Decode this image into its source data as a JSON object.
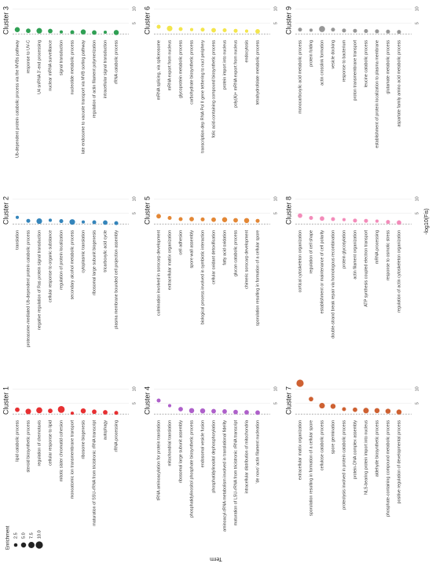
{
  "figure": {
    "x_label": "-log10(Fis)",
    "y_label": "Term",
    "legend": {
      "title": "Enrichment",
      "sizes": [
        2.5,
        {
          "value": 5,
          "label": "5.0"
        },
        {
          "value": 7.5,
          "label": "7.5"
        },
        {
          "value": 10,
          "label": "10.0"
        }
      ]
    }
  },
  "chart_data": [
    {
      "type": "dot",
      "title": "Cluster 1",
      "color": "#e41a1c",
      "xlim": [
        0,
        12
      ],
      "xticks": [
        5,
        10
      ],
      "threshold": 1.3,
      "categories": [
        "lipid catabolic process",
        "steroid biosynthetic process",
        "regulation of chemotaxis",
        "cellular response to lipid",
        "mitotic sister chromatid cohesion",
        "monoatomic ion transmembrane transport",
        "ribosome biogenesis",
        "maturation of SSU-rRNA from tricistronic rRNA transcript",
        "autophagy",
        "rRNA processing"
      ],
      "values": [
        2.8,
        2.2,
        2.6,
        2.4,
        2.9,
        1.6,
        2.4,
        2.1,
        1.9,
        1.7
      ],
      "sizes": [
        4,
        6,
        7,
        4,
        9,
        2,
        5,
        4,
        4,
        3
      ]
    },
    {
      "type": "dot",
      "title": "Cluster 2",
      "color": "#1f78b4",
      "xlim": [
        0,
        12
      ],
      "xticks": [
        5,
        10
      ],
      "threshold": 1.3,
      "categories": [
        "translation",
        "proteasome-mediated Ub-dependent protein catabolic process",
        "negative regulation of Ras protein signal transduction",
        "cellular response to organic substance",
        "regulation of protein localization",
        "secondary alcohol metabolic process",
        "cytoplasmic translation",
        "ribosomal large subunit biogenesis",
        "tricarboxylic acid cycle",
        "plasma membrane bounded cell projection assembly"
      ],
      "values": [
        3.6,
        2.4,
        2.3,
        2.6,
        2.3,
        2.0,
        2.0,
        1.9,
        1.8,
        1.6
      ],
      "sizes": [
        2,
        3,
        6,
        2,
        3,
        6,
        2,
        3,
        4,
        3
      ]
    },
    {
      "type": "dot",
      "title": "Cluster 3",
      "color": "#1a9641",
      "xlim": [
        0,
        12
      ],
      "xticks": [
        5,
        10
      ],
      "threshold": 1.3,
      "categories": [
        "Ub-dependent protein catabolic process via the MVBs pathway",
        "response to UV-C",
        "U4 snRNA 3'-end processing",
        "nuclear mRNA surveillance",
        "signal transduction",
        "nucleotide metabolic process",
        "late endosome to vacuole transport via MVB sorting pathway",
        "regulation of actin filament polymerization",
        "intracellular signal transduction",
        "rRNA catabolic process"
      ],
      "values": [
        2.8,
        2.4,
        2.4,
        2.3,
        2.0,
        1.9,
        2.0,
        1.8,
        1.9,
        1.8
      ],
      "sizes": [
        5,
        4,
        6,
        4,
        2,
        3,
        5,
        4,
        2,
        5
      ]
    },
    {
      "type": "dot",
      "title": "Cluster 4",
      "color": "#a54fc4",
      "xlim": [
        0,
        12
      ],
      "xticks": [
        5,
        10
      ],
      "threshold": 1.3,
      "categories": [
        "tRNA aminoacylation for protein translation",
        "mitochondrial translation",
        "ribosomal large subunit assembly",
        "phosphatidylinositol phosphate biosynthetic process",
        "endosomal vesicle fusion",
        "phosphatidylinositol dephosphorylation",
        "aminoacyl-tRNA metabolism involved in translational fidelity",
        "maturation of LSU-rRNA from tricistronic rRNA transcript",
        "intracellular distribution of mitochondria",
        "'de novo' actin filament nucleation"
      ],
      "values": [
        6.0,
        4.2,
        3.0,
        2.5,
        2.4,
        2.3,
        2.2,
        2.0,
        1.9,
        1.8
      ],
      "sizes": [
        3,
        2,
        4,
        5,
        5,
        4,
        4,
        4,
        4,
        4
      ]
    },
    {
      "type": "dot",
      "title": "Cluster 5",
      "color": "#e07a1f",
      "xlim": [
        0,
        12
      ],
      "xticks": [
        5,
        10
      ],
      "threshold": 1.3,
      "categories": [
        "culmination involved in sorocarp development",
        "extracellular matrix organization",
        "cell adhesion",
        "spore wall assembly",
        "biological process involved in symbiotic interaction",
        "cellular oxidant detoxification",
        "fatty acid oxidation",
        "glucan catabolic process",
        "chimeric sorocarp development",
        "sporulation resulting in formation of a cellular spore"
      ],
      "values": [
        4.0,
        3.4,
        3.0,
        3.0,
        2.9,
        2.8,
        2.8,
        2.6,
        2.5,
        2.4
      ],
      "sizes": [
        4,
        3,
        3,
        4,
        3,
        4,
        5,
        4,
        5,
        3
      ]
    },
    {
      "type": "dot",
      "title": "Cluster 6",
      "color": "#f2e23a",
      "xlim": [
        0,
        12
      ],
      "xticks": [
        5,
        10
      ],
      "threshold": 1.3,
      "categories": [
        "mRNA splicing, via spliceosome",
        "mRNA export from nucleus",
        "glycoprotein metabolic process",
        "carbohydrate biosynthetic process",
        "transcription-dep RNA Pol II gene tethering to nucl periphery",
        "folic acid-containing compound biosynthetic process",
        "protein import into nucleus",
        "poly(A)+ mRNA export from nucleus",
        "endocytosis",
        "tetrahydrofolate metabolic process"
      ],
      "values": [
        3.8,
        3.2,
        3.0,
        2.8,
        2.8,
        2.6,
        2.6,
        2.4,
        2.3,
        2.2
      ],
      "sizes": [
        3,
        6,
        3,
        2,
        3,
        4,
        3,
        3,
        2,
        4
      ]
    },
    {
      "type": "dot",
      "title": "Cluster 7",
      "color": "#c9501c",
      "xlim": [
        0,
        12
      ],
      "xticks": [
        5,
        10
      ],
      "threshold": 1.3,
      "categories": [
        "extracellular matrix organization",
        "sporulation resulting in formation of a cellular spore",
        "cellulose catabolic process",
        "spore germination",
        "proteolysis involved in protein catabolic process",
        "protein-DNA complex assembly",
        "NLS-bearing protein import into nucleus",
        "aldehyde biosynthetic process",
        "phosphate-containing compound metabolic process",
        "positive regulation of developmental process"
      ],
      "values": [
        12.0,
        6.5,
        4.2,
        4.0,
        3.0,
        2.8,
        2.5,
        2.5,
        2.3,
        2.0
      ],
      "sizes": [
        10,
        4,
        6,
        5,
        3,
        4,
        6,
        5,
        5,
        5
      ]
    },
    {
      "type": "dot",
      "title": "Cluster 8",
      "color": "#f27fb2",
      "xlim": [
        0,
        12
      ],
      "xticks": [
        5,
        10
      ],
      "threshold": 1.3,
      "categories": [
        "cortical cytoskeleton organization",
        "regulation of cell shape",
        "establishment or maintenance of cell polarity",
        "double-strand break repair via homologous recombination",
        "protein glycosylation",
        "actin filament organization",
        "ATP synthesis coupled electron transport",
        "mRNA processing",
        "response to osmotic stress",
        "regulation of actin cytoskeleton organization"
      ],
      "values": [
        4.2,
        3.4,
        3.2,
        3.0,
        2.8,
        2.5,
        2.4,
        2.3,
        2.0,
        1.8
      ],
      "sizes": [
        4,
        3,
        4,
        3,
        2,
        3,
        3,
        2,
        3,
        4
      ]
    },
    {
      "type": "dot",
      "title": "Cluster 9",
      "color": "#8c8c8c",
      "xlim": [
        0,
        12
      ],
      "xticks": [
        5,
        10
      ],
      "threshold": 1.3,
      "categories": [
        "monocarboxylic acid metabolic process",
        "protein folding",
        "actin crosslink formation",
        "vesicle docking",
        "response to bacterium",
        "proton transmembrane transport",
        "leucine catabolic process",
        "establishment of protein localization to plasma membrane",
        "glutamate metabolic process",
        "aspartate family amino acid metabolic process"
      ],
      "values": [
        2.8,
        2.6,
        3.0,
        2.8,
        2.5,
        2.4,
        2.3,
        2.2,
        2.1,
        2.0
      ],
      "sizes": [
        3,
        2,
        7,
        3,
        3,
        3,
        3,
        3,
        3,
        3
      ]
    }
  ]
}
